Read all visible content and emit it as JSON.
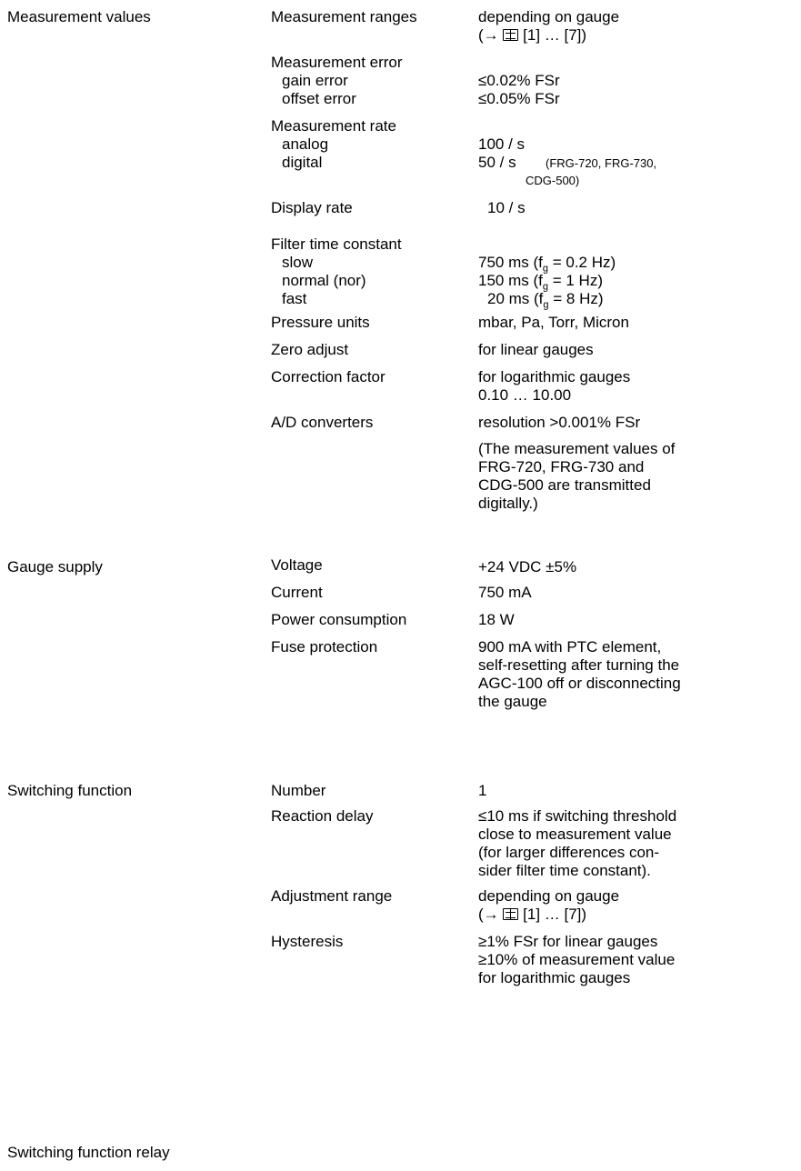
{
  "sections": {
    "measurement": "Measurement values",
    "gauge_supply": "Gauge supply",
    "switching": "Switching function",
    "relay": "Switching function relay"
  },
  "measurement": {
    "ranges_label": "Measurement ranges",
    "ranges_value": "depending on gauge",
    "ranges_ref_prefix": "(→",
    "ranges_ref_suffix": "[1] … [7])",
    "error_label": "Measurement error",
    "gain_label": "gain error",
    "gain_value": "≤0.02% FSr",
    "offset_label": "offset error",
    "offset_value": "≤0.05% FSr",
    "rate_label": "Measurement rate",
    "analog_label": "analog",
    "analog_value": "100 / s",
    "digital_label": "digital",
    "digital_value": "50 / s",
    "digital_note_1": "(FRG-720, FRG-730,",
    "digital_note_2": "CDG-500)",
    "display_label": "Display rate",
    "display_value": "10 / s",
    "filter_label": "Filter time constant",
    "slow_label": "slow",
    "slow_value_a": "750 ms (f",
    "slow_sub": "g",
    "slow_value_b": " = 0.2 Hz)",
    "normal_label": "normal (nor)",
    "normal_value_a": "150 ms (f",
    "normal_sub": "g",
    "normal_value_b": " = 1 Hz)",
    "fast_label": "fast",
    "fast_value_a": "20 ms (f",
    "fast_sub": "g",
    "fast_value_b": " = 8 Hz)",
    "units_label": "Pressure units",
    "units_value": "mbar, Pa, Torr, Micron",
    "zero_label": "Zero adjust",
    "zero_value": "for linear gauges",
    "corr_label": "Correction factor",
    "corr_value_1": "for logarithmic gauges",
    "corr_value_2": "0.10 … 10.00",
    "ad_label": "A/D converters",
    "ad_value": "resolution >0.001% FSr",
    "ad_note_1": "(The measurement values of",
    "ad_note_2": "FRG-720, FRG-730 and",
    "ad_note_3": "CDG-500 are transmitted",
    "ad_note_4": "digitally.)"
  },
  "gauge_supply": {
    "voltage_label": "Voltage",
    "voltage_value": "+24 VDC ±5%",
    "current_label": "Current",
    "current_value": "750 mA",
    "power_label": "Power consumption",
    "power_value": "18 W",
    "fuse_label": "Fuse protection",
    "fuse_1": "900 mA with PTC element,",
    "fuse_2": "self-resetting after turning the",
    "fuse_3": "AGC-100 off or disconnecting",
    "fuse_4": "the gauge"
  },
  "switching": {
    "number_label": "Number",
    "number_value": "1",
    "delay_label": "Reaction delay",
    "delay_1": "≤10 ms if switching threshold",
    "delay_2": "close to measurement value",
    "delay_3": "(for larger differences con-",
    "delay_4": "sider filter time constant).",
    "adj_label": "Adjustment range",
    "adj_value": "depending on gauge",
    "adj_ref_prefix": "(→",
    "adj_ref_suffix": "[1] … [7])",
    "hyst_label": "Hysteresis",
    "hyst_1": "≥1% FSr for linear gauges",
    "hyst_2": "≥10% of measurement value",
    "hyst_3": "for logarithmic gauges"
  }
}
